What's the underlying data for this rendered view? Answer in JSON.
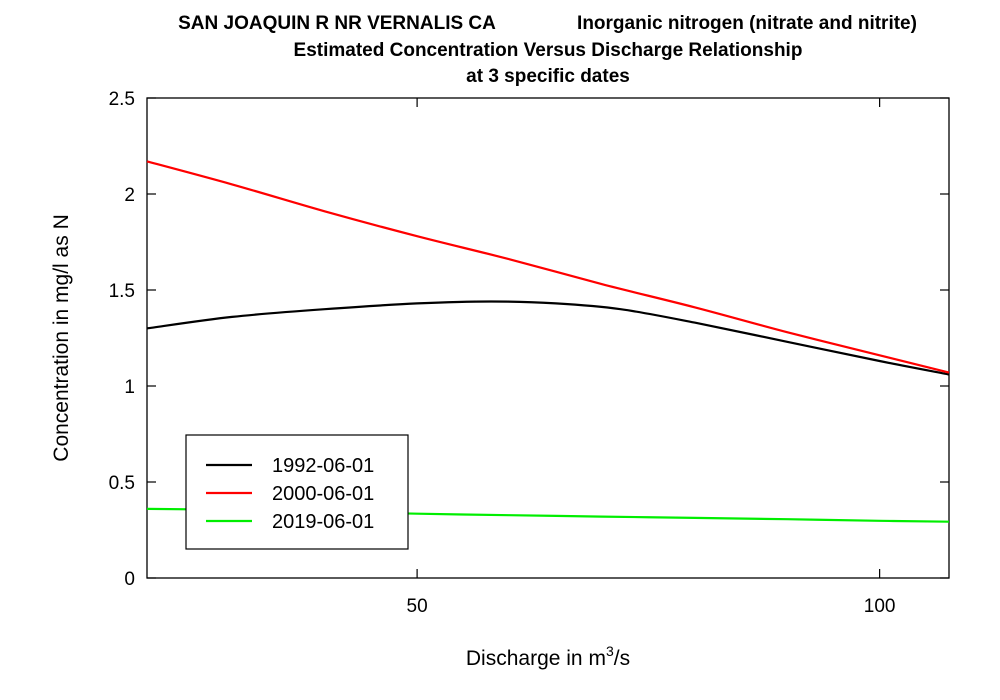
{
  "chart_data": {
    "type": "line",
    "title": {
      "line1_left": "SAN JOAQUIN R NR VERNALIS CA",
      "line1_right": "Inorganic nitrogen (nitrate and nitrite)",
      "line2": "Estimated Concentration Versus Discharge Relationship",
      "line3": "at 3 specific dates"
    },
    "xlabel": {
      "prefix": "Discharge in m",
      "sup": "3",
      "suffix": "/s"
    },
    "ylabel": "Concentration in mg/l as N",
    "xlim": [
      20.8,
      107.5
    ],
    "ylim": [
      0,
      2.5
    ],
    "xticks": [
      {
        "value": 50,
        "label": "50"
      },
      {
        "value": 100,
        "label": "100"
      }
    ],
    "yticks": [
      {
        "value": 0,
        "label": "0"
      },
      {
        "value": 0.5,
        "label": "0.5"
      },
      {
        "value": 1,
        "label": "1"
      },
      {
        "value": 1.5,
        "label": "1.5"
      },
      {
        "value": 2,
        "label": "2"
      },
      {
        "value": 2.5,
        "label": "2.5"
      }
    ],
    "legend_position": "bottom-left",
    "series": [
      {
        "name": "1992-06-01",
        "color": "#000000",
        "points": [
          [
            20.8,
            1.3
          ],
          [
            30,
            1.36
          ],
          [
            40,
            1.4
          ],
          [
            50,
            1.43
          ],
          [
            58,
            1.44
          ],
          [
            65,
            1.43
          ],
          [
            72,
            1.4
          ],
          [
            80,
            1.33
          ],
          [
            90,
            1.23
          ],
          [
            100,
            1.13
          ],
          [
            107.5,
            1.06
          ]
        ]
      },
      {
        "name": "2000-06-01",
        "color": "#ff0000",
        "points": [
          [
            20.8,
            2.17
          ],
          [
            30,
            2.05
          ],
          [
            40,
            1.91
          ],
          [
            50,
            1.78
          ],
          [
            60,
            1.66
          ],
          [
            70,
            1.53
          ],
          [
            80,
            1.41
          ],
          [
            90,
            1.28
          ],
          [
            100,
            1.16
          ],
          [
            107.5,
            1.07
          ]
        ]
      },
      {
        "name": "2019-06-01",
        "color": "#00ee00",
        "points": [
          [
            20.8,
            0.36
          ],
          [
            30,
            0.355
          ],
          [
            40,
            0.345
          ],
          [
            50,
            0.335
          ],
          [
            60,
            0.327
          ],
          [
            70,
            0.32
          ],
          [
            80,
            0.313
          ],
          [
            90,
            0.306
          ],
          [
            100,
            0.298
          ],
          [
            107.5,
            0.293
          ]
        ]
      }
    ]
  }
}
